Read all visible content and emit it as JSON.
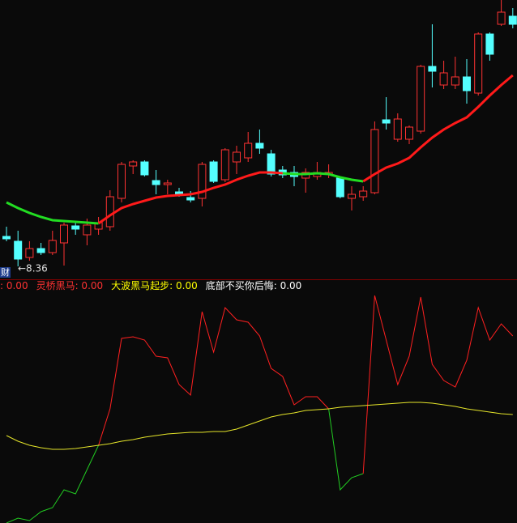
{
  "chart_data": [
    {
      "type": "candlestick",
      "ylim": [
        8.2,
        11.65
      ],
      "up_color": "#ff3232",
      "down_color": "#54ffff",
      "open": [
        8.73,
        8.67,
        8.47,
        8.58,
        8.53,
        8.65,
        8.86,
        8.75,
        8.82,
        8.85,
        9.2,
        9.6,
        9.65,
        9.42,
        9.37,
        9.28,
        9.21,
        9.2,
        9.65,
        9.43,
        9.65,
        9.7,
        9.88,
        9.75,
        9.55,
        9.52,
        9.45,
        9.47,
        9.5,
        9.45,
        9.2,
        9.22,
        9.27,
        10.17,
        9.93,
        9.93,
        10.03,
        10.83,
        10.6,
        10.6,
        10.7,
        10.5,
        11.23,
        11.35,
        11.45
      ],
      "high": [
        8.85,
        8.8,
        8.67,
        8.65,
        8.8,
        8.9,
        8.9,
        8.95,
        8.97,
        9.3,
        9.65,
        9.67,
        9.67,
        9.55,
        9.43,
        9.33,
        9.29,
        9.65,
        9.67,
        9.82,
        9.85,
        10.02,
        10.05,
        9.8,
        9.6,
        9.6,
        9.57,
        9.65,
        9.62,
        9.47,
        9.35,
        9.35,
        10.15,
        10.45,
        10.25,
        10.1,
        10.85,
        11.35,
        10.9,
        10.95,
        10.92,
        11.25,
        11.25,
        11.65,
        11.55
      ],
      "low": [
        8.67,
        8.36,
        8.43,
        8.5,
        8.5,
        8.37,
        8.75,
        8.62,
        8.75,
        8.8,
        9.15,
        9.5,
        9.47,
        9.25,
        9.25,
        9.22,
        9.15,
        9.1,
        9.39,
        9.4,
        9.5,
        9.65,
        9.75,
        9.47,
        9.45,
        9.35,
        9.27,
        9.43,
        9.45,
        9.2,
        9.05,
        9.17,
        9.25,
        10.05,
        9.9,
        9.87,
        10.0,
        10.57,
        10.55,
        10.55,
        10.37,
        10.47,
        10.9,
        11.33,
        11.3
      ],
      "close": [
        8.7,
        8.45,
        8.58,
        8.53,
        8.68,
        8.87,
        8.82,
        8.87,
        8.9,
        9.22,
        9.62,
        9.65,
        9.49,
        9.37,
        9.39,
        9.24,
        9.18,
        9.62,
        9.41,
        9.8,
        9.77,
        9.88,
        9.82,
        9.5,
        9.49,
        9.47,
        9.52,
        9.52,
        9.52,
        9.22,
        9.25,
        9.29,
        10.05,
        10.13,
        10.18,
        10.08,
        10.83,
        10.77,
        10.75,
        10.7,
        10.53,
        11.23,
        10.98,
        11.5,
        11.35
      ],
      "series": [
        {
          "color": "#22dd22",
          "values": [
            9.15,
            9.08,
            9.02,
            8.97,
            8.93,
            8.92,
            8.91,
            8.9,
            8.89,
            null,
            null,
            null,
            null,
            null,
            null,
            null,
            null,
            null,
            null,
            null,
            null,
            null,
            null,
            null,
            9.51,
            9.5,
            9.5,
            9.51,
            9.5,
            9.46,
            9.43,
            9.41,
            null,
            null,
            null,
            null,
            null,
            null,
            null,
            null,
            null,
            null,
            null,
            null,
            null
          ]
        },
        {
          "color": "#ff1a1a",
          "values": [
            null,
            null,
            null,
            null,
            null,
            null,
            null,
            null,
            8.89,
            8.99,
            9.08,
            9.13,
            9.17,
            9.21,
            9.23,
            9.24,
            9.25,
            9.28,
            9.33,
            9.37,
            9.43,
            9.48,
            9.52,
            9.52,
            9.51,
            null,
            null,
            null,
            null,
            null,
            null,
            9.41,
            9.5,
            9.58,
            9.63,
            9.7,
            9.83,
            9.95,
            10.05,
            10.13,
            10.2,
            10.33,
            10.47,
            10.6,
            10.72
          ]
        }
      ],
      "annotations": [
        {
          "value": 8.36,
          "label": "←8.36"
        }
      ],
      "side_label": "财"
    },
    {
      "type": "line",
      "ylim": [
        0,
        286
      ],
      "legend": [
        {
          "text": ": 0.00",
          "color": "#ff3232"
        },
        {
          "text": "灵桥黑马: 0.00",
          "color": "#ff3232"
        },
        {
          "text": "大波黑马起步: 0.00",
          "color": "#ffff00"
        },
        {
          "text": "底部不买你后悔: 0.00",
          "color": "#ffffff"
        }
      ],
      "series": [
        {
          "color": "#22cc22",
          "values": [
            0,
            6,
            3,
            14,
            19,
            41,
            36,
            66,
            96,
            null,
            null,
            null,
            null,
            null,
            null,
            null,
            null,
            null,
            null,
            null,
            null,
            null,
            null,
            null,
            null,
            null,
            null,
            null,
            141,
            41,
            56,
            61,
            null,
            null,
            null,
            null,
            null,
            null,
            null,
            null,
            null,
            null,
            null,
            null,
            null
          ]
        },
        {
          "color": "#ff2020",
          "values": [
            null,
            null,
            null,
            null,
            null,
            null,
            null,
            null,
            96,
            141,
            228,
            230,
            226,
            206,
            204,
            171,
            158,
            261,
            211,
            266,
            251,
            248,
            231,
            191,
            181,
            146,
            156,
            156,
            141,
            null,
            null,
            61,
            281,
            226,
            171,
            206,
            279,
            196,
            176,
            168,
            201,
            266,
            226,
            246,
            231
          ]
        },
        {
          "color": "#e6e62a",
          "values": [
            108,
            101,
            96,
            93,
            91,
            91,
            92,
            94,
            96,
            98,
            101,
            103,
            106,
            108,
            110,
            111,
            112,
            112,
            113,
            113,
            116,
            121,
            126,
            131,
            134,
            136,
            139,
            140,
            141,
            143,
            144,
            145,
            146,
            147,
            148,
            149,
            149,
            148,
            146,
            144,
            141,
            139,
            137,
            135,
            134
          ]
        }
      ]
    }
  ]
}
